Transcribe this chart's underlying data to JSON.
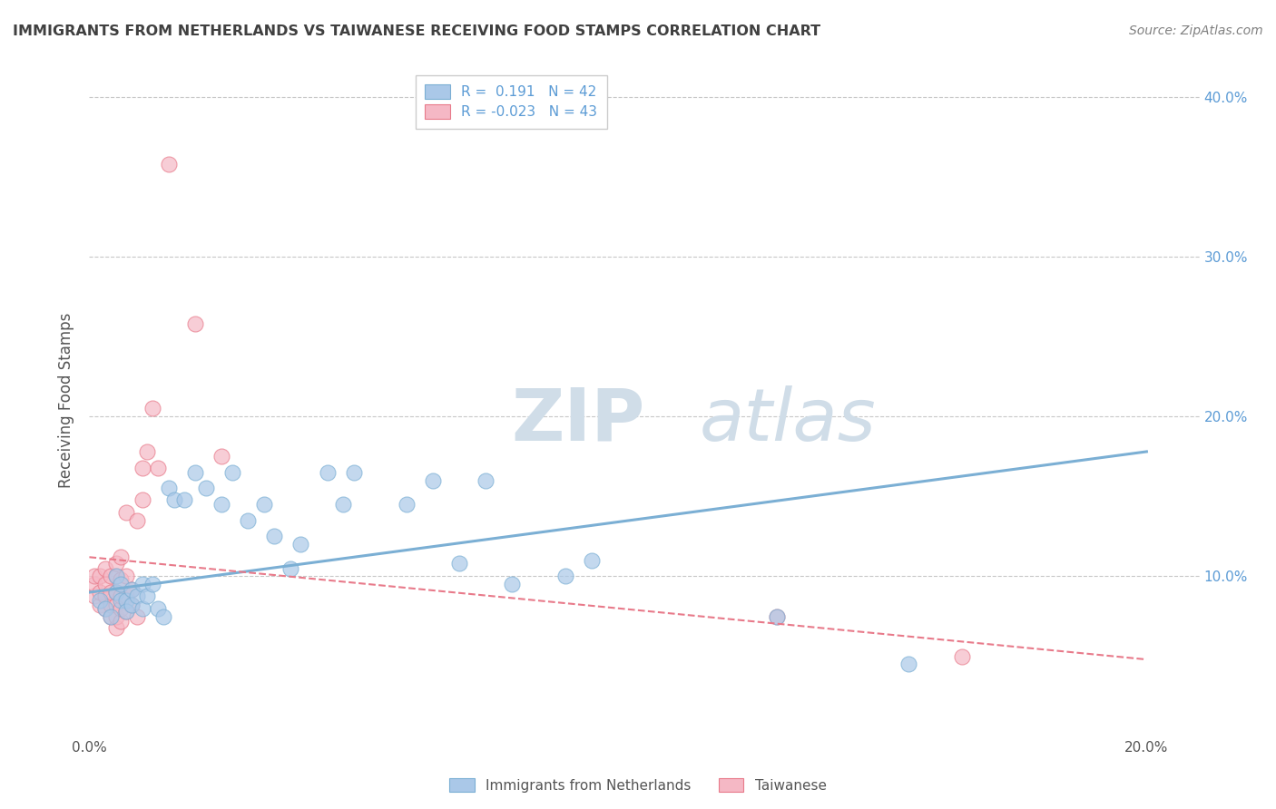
{
  "title": "IMMIGRANTS FROM NETHERLANDS VS TAIWANESE RECEIVING FOOD STAMPS CORRELATION CHART",
  "source": "Source: ZipAtlas.com",
  "ylabel": "Receiving Food Stamps",
  "xlim": [
    0.0,
    0.21
  ],
  "ylim": [
    0.0,
    0.42
  ],
  "x_ticks": [
    0.0,
    0.05,
    0.1,
    0.15,
    0.2
  ],
  "y_ticks": [
    0.0,
    0.1,
    0.2,
    0.3,
    0.4
  ],
  "blue_scatter_x": [
    0.002,
    0.003,
    0.004,
    0.005,
    0.005,
    0.006,
    0.006,
    0.007,
    0.007,
    0.008,
    0.008,
    0.009,
    0.01,
    0.01,
    0.011,
    0.012,
    0.013,
    0.014,
    0.015,
    0.016,
    0.018,
    0.02,
    0.022,
    0.025,
    0.027,
    0.03,
    0.033,
    0.035,
    0.038,
    0.04,
    0.045,
    0.048,
    0.05,
    0.06,
    0.065,
    0.07,
    0.075,
    0.08,
    0.09,
    0.095,
    0.13,
    0.155
  ],
  "blue_scatter_y": [
    0.085,
    0.08,
    0.075,
    0.09,
    0.1,
    0.085,
    0.095,
    0.085,
    0.078,
    0.092,
    0.082,
    0.088,
    0.08,
    0.095,
    0.088,
    0.095,
    0.08,
    0.075,
    0.155,
    0.148,
    0.148,
    0.165,
    0.155,
    0.145,
    0.165,
    0.135,
    0.145,
    0.125,
    0.105,
    0.12,
    0.165,
    0.145,
    0.165,
    0.145,
    0.16,
    0.108,
    0.16,
    0.095,
    0.1,
    0.11,
    0.075,
    0.045
  ],
  "pink_scatter_x": [
    0.001,
    0.001,
    0.001,
    0.002,
    0.002,
    0.002,
    0.003,
    0.003,
    0.003,
    0.003,
    0.004,
    0.004,
    0.004,
    0.004,
    0.005,
    0.005,
    0.005,
    0.005,
    0.005,
    0.005,
    0.006,
    0.006,
    0.006,
    0.006,
    0.006,
    0.007,
    0.007,
    0.007,
    0.007,
    0.008,
    0.008,
    0.009,
    0.009,
    0.01,
    0.01,
    0.011,
    0.012,
    0.013,
    0.015,
    0.02,
    0.025,
    0.13,
    0.165
  ],
  "pink_scatter_y": [
    0.088,
    0.095,
    0.1,
    0.082,
    0.09,
    0.1,
    0.08,
    0.088,
    0.095,
    0.105,
    0.075,
    0.082,
    0.09,
    0.1,
    0.068,
    0.075,
    0.082,
    0.09,
    0.1,
    0.108,
    0.072,
    0.08,
    0.088,
    0.098,
    0.112,
    0.078,
    0.088,
    0.1,
    0.14,
    0.082,
    0.092,
    0.075,
    0.135,
    0.148,
    0.168,
    0.178,
    0.205,
    0.168,
    0.358,
    0.258,
    0.175,
    0.075,
    0.05
  ],
  "blue_line_x": [
    0.0,
    0.2
  ],
  "blue_line_y": [
    0.09,
    0.178
  ],
  "pink_line_x": [
    0.0,
    0.2
  ],
  "pink_line_y": [
    0.112,
    0.048
  ],
  "background_color": "#ffffff",
  "grid_color": "#c8c8c8",
  "blue_color": "#7bafd4",
  "blue_fill": "#aac8e8",
  "pink_color": "#e87a8a",
  "pink_fill": "#f5b8c5",
  "title_color": "#404040",
  "source_color": "#808080",
  "right_axis_color": "#5b9bd5"
}
